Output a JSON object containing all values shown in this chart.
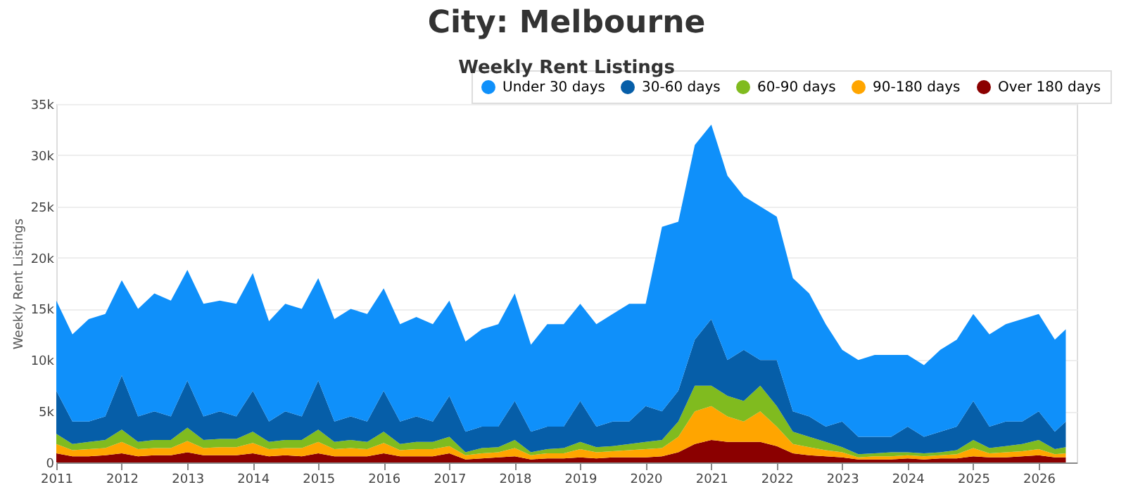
{
  "chart_data": {
    "type": "area",
    "stacked": true,
    "title": "City: Melbourne",
    "subtitle": "Weekly Rent Listings",
    "ylabel": "Weekly Rent Listings",
    "x": [
      "2011-01",
      "2011-04",
      "2011-07",
      "2011-10",
      "2012-01",
      "2012-04",
      "2012-07",
      "2012-10",
      "2013-01",
      "2013-04",
      "2013-07",
      "2013-10",
      "2014-01",
      "2014-04",
      "2014-07",
      "2014-10",
      "2015-01",
      "2015-04",
      "2015-07",
      "2015-10",
      "2016-01",
      "2016-04",
      "2016-07",
      "2016-10",
      "2017-01",
      "2017-04",
      "2017-07",
      "2017-10",
      "2018-01",
      "2018-04",
      "2018-07",
      "2018-10",
      "2019-01",
      "2019-04",
      "2019-07",
      "2019-10",
      "2020-01",
      "2020-04",
      "2020-07",
      "2020-10",
      "2021-01",
      "2021-04",
      "2021-07",
      "2021-10",
      "2022-01",
      "2022-04",
      "2022-07",
      "2022-10",
      "2023-01",
      "2023-04",
      "2023-07",
      "2023-10",
      "2024-01",
      "2024-04",
      "2024-07",
      "2024-10",
      "2025-01",
      "2025-04",
      "2025-07",
      "2025-10",
      "2026-01",
      "2026-04",
      "2026-06"
    ],
    "series": [
      {
        "name": "Over 180 days",
        "color": "#8b0000",
        "values": [
          900,
          600,
          600,
          700,
          900,
          600,
          700,
          700,
          1000,
          700,
          700,
          700,
          900,
          600,
          700,
          600,
          900,
          600,
          600,
          600,
          900,
          600,
          600,
          600,
          900,
          300,
          400,
          500,
          600,
          300,
          400,
          400,
          500,
          400,
          500,
          500,
          500,
          600,
          1000,
          1800,
          2200,
          2000,
          2000,
          2000,
          1600,
          900,
          700,
          600,
          500,
          300,
          300,
          300,
          400,
          300,
          400,
          400,
          600,
          500,
          500,
          600,
          700,
          500,
          500
        ]
      },
      {
        "name": "90-180 days",
        "color": "#ffa500",
        "values": [
          900,
          600,
          700,
          700,
          1100,
          700,
          700,
          700,
          1100,
          700,
          800,
          800,
          1000,
          700,
          700,
          800,
          1100,
          700,
          800,
          700,
          1000,
          600,
          700,
          700,
          700,
          400,
          500,
          500,
          800,
          400,
          500,
          500,
          800,
          600,
          600,
          700,
          800,
          800,
          1500,
          3200,
          3300,
          2500,
          2000,
          3000,
          1900,
          900,
          800,
          600,
          500,
          200,
          300,
          300,
          300,
          300,
          300,
          400,
          800,
          400,
          500,
          500,
          600,
          300,
          400
        ]
      },
      {
        "name": "60-90 days",
        "color": "#80bb1f",
        "values": [
          1000,
          600,
          700,
          800,
          1200,
          700,
          800,
          800,
          1300,
          800,
          800,
          800,
          1100,
          700,
          800,
          800,
          1200,
          700,
          800,
          700,
          1100,
          600,
          700,
          700,
          900,
          300,
          500,
          500,
          800,
          300,
          400,
          500,
          700,
          500,
          500,
          600,
          700,
          800,
          1500,
          2500,
          2000,
          2000,
          2000,
          2500,
          2000,
          1200,
          1000,
          800,
          500,
          300,
          300,
          400,
          300,
          300,
          300,
          400,
          800,
          500,
          600,
          700,
          900,
          500,
          600
        ]
      },
      {
        "name": "30-60 days",
        "color": "#065ea8",
        "values": [
          4200,
          2200,
          2000,
          2300,
          5300,
          2500,
          2800,
          2300,
          4600,
          2300,
          2700,
          2200,
          4000,
          2000,
          2800,
          2300,
          4800,
          2000,
          2300,
          2000,
          4000,
          2200,
          2500,
          2000,
          4000,
          2000,
          2100,
          2000,
          3800,
          2000,
          2200,
          2100,
          4000,
          2000,
          2400,
          2200,
          3500,
          2800,
          3000,
          4500,
          6500,
          3500,
          5000,
          2500,
          4500,
          2000,
          2000,
          1500,
          2500,
          1700,
          1600,
          1500,
          2500,
          1600,
          2000,
          2300,
          3800,
          2100,
          2400,
          2200,
          2800,
          1700,
          2500
        ]
      },
      {
        "name": "Under 30 days",
        "color": "#0f90fa",
        "values": [
          8800,
          8500,
          10000,
          10000,
          9300,
          10500,
          11500,
          11300,
          10800,
          11000,
          10800,
          11000,
          11500,
          9800,
          10500,
          10500,
          10000,
          10000,
          10500,
          10500,
          10000,
          9500,
          9700,
          9500,
          9300,
          8800,
          9500,
          10000,
          10500,
          8500,
          10000,
          10000,
          9500,
          10000,
          10500,
          11500,
          10000,
          18000,
          16500,
          19000,
          19000,
          18000,
          15000,
          15000,
          14000,
          13000,
          12000,
          10000,
          7000,
          7500,
          8000,
          8000,
          7000,
          7000,
          8000,
          8500,
          8500,
          9000,
          9500,
          10000,
          9500,
          9000,
          9000
        ]
      }
    ],
    "ylim": [
      0,
      35000
    ],
    "yticks": [
      0,
      {
        "value": 5000,
        "label": "5k"
      },
      {
        "value": 10000,
        "label": "10k"
      },
      {
        "value": 15000,
        "label": "15k"
      },
      {
        "value": 20000,
        "label": "20k"
      },
      {
        "value": 25000,
        "label": "25k"
      },
      {
        "value": 30000,
        "label": "30k"
      },
      {
        "value": 35000,
        "label": "35k"
      }
    ],
    "xlim": [
      "2011-01",
      "2026-08"
    ],
    "xticks": [
      "2011",
      "2012",
      "2013",
      "2014",
      "2015",
      "2016",
      "2017",
      "2018",
      "2019",
      "2020",
      "2021",
      "2022",
      "2023",
      "2024",
      "2025",
      "2026"
    ],
    "grid": "y",
    "legend": "top right"
  }
}
